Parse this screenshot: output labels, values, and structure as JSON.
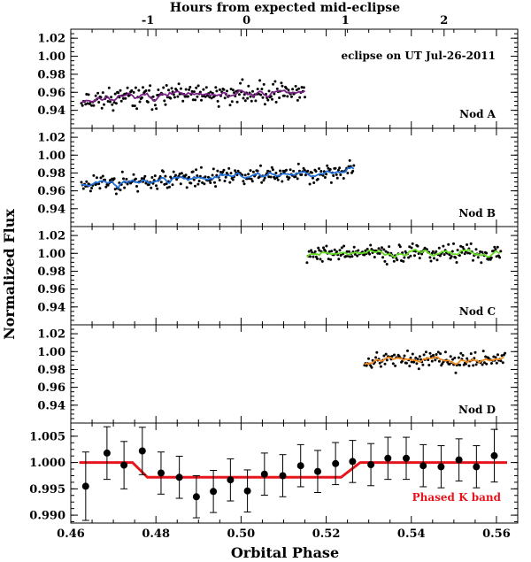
{
  "chart_data": {
    "type": "line",
    "top_axis": {
      "title": "Hours from expected mid-eclipse",
      "ticks": [
        -1,
        0,
        1,
        2
      ],
      "tick_phase": [
        0.4781,
        0.5013,
        0.5245,
        0.5477
      ]
    },
    "xlabel": "Orbital Phase",
    "ylabel": "Normalized Flux",
    "xlim": [
      0.46,
      0.565
    ],
    "xticks": [
      "0.46",
      "0.48",
      "0.50",
      "0.52",
      "0.54",
      "0.56"
    ],
    "panels": [
      {
        "label": "Nod A",
        "note": "eclipse on UT Jul-26-2011",
        "ylim": [
          0.92,
          1.03
        ],
        "yticks": [
          "0.94",
          "0.96",
          "0.98",
          "1.00",
          "1.02"
        ],
        "line_color": "#7a1f86",
        "phase_range": [
          0.4625,
          0.515
        ],
        "base": 0.952,
        "scatter": 0.01,
        "seed": 11
      },
      {
        "label": "Nod B",
        "ylim": [
          0.92,
          1.03
        ],
        "yticks": [
          "0.94",
          "0.96",
          "0.98",
          "1.00",
          "1.02"
        ],
        "line_color": "#1f6fd6",
        "phase_range": [
          0.4625,
          0.5265
        ],
        "base": 0.968,
        "scatter": 0.009,
        "seed": 23
      },
      {
        "label": "Nod C",
        "ylim": [
          0.92,
          1.03
        ],
        "yticks": [
          "0.94",
          "0.96",
          "0.98",
          "1.00",
          "1.02"
        ],
        "line_color": "#66dd22",
        "phase_range": [
          0.5155,
          0.561
        ],
        "base": 1.0,
        "scatter": 0.008,
        "seed": 37
      },
      {
        "label": "Nod D",
        "ylim": [
          0.92,
          1.03
        ],
        "yticks": [
          "0.94",
          "0.96",
          "0.98",
          "1.00",
          "1.02"
        ],
        "line_color": "#f08a1c",
        "phase_range": [
          0.529,
          0.562
        ],
        "base": 0.991,
        "scatter": 0.008,
        "seed": 53
      }
    ],
    "phased": {
      "label": "Phased K band",
      "label_color": "#e8141c",
      "ylim": [
        0.9885,
        1.0075
      ],
      "yticks": [
        "0.990",
        "0.995",
        "1.000",
        "1.005"
      ],
      "model_color": "#e8141c",
      "model": {
        "out_level": 1.0,
        "in_level": 0.9972,
        "ingress": [
          0.4745,
          0.478
        ],
        "egress": [
          0.5235,
          0.528
        ]
      },
      "points": [
        {
          "x": 0.4635,
          "y": 0.9955,
          "err": 0.0065
        },
        {
          "x": 0.4685,
          "y": 1.0018,
          "err": 0.005
        },
        {
          "x": 0.4725,
          "y": 0.9995,
          "err": 0.0045
        },
        {
          "x": 0.4768,
          "y": 1.0022,
          "err": 0.0045
        },
        {
          "x": 0.4812,
          "y": 0.998,
          "err": 0.004
        },
        {
          "x": 0.4855,
          "y": 0.9972,
          "err": 0.004
        },
        {
          "x": 0.4895,
          "y": 0.9935,
          "err": 0.004
        },
        {
          "x": 0.4935,
          "y": 0.9945,
          "err": 0.004
        },
        {
          "x": 0.4975,
          "y": 0.9967,
          "err": 0.004
        },
        {
          "x": 0.5015,
          "y": 0.9946,
          "err": 0.004
        },
        {
          "x": 0.5055,
          "y": 0.9978,
          "err": 0.004
        },
        {
          "x": 0.5098,
          "y": 0.9975,
          "err": 0.004
        },
        {
          "x": 0.514,
          "y": 0.9994,
          "err": 0.004
        },
        {
          "x": 0.518,
          "y": 0.9983,
          "err": 0.004
        },
        {
          "x": 0.5222,
          "y": 0.9998,
          "err": 0.004
        },
        {
          "x": 0.5262,
          "y": 1.0002,
          "err": 0.004
        },
        {
          "x": 0.5305,
          "y": 0.9996,
          "err": 0.004
        },
        {
          "x": 0.5345,
          "y": 1.0008,
          "err": 0.004
        },
        {
          "x": 0.5388,
          "y": 1.0008,
          "err": 0.004
        },
        {
          "x": 0.5428,
          "y": 0.9994,
          "err": 0.004
        },
        {
          "x": 0.547,
          "y": 0.9992,
          "err": 0.004
        },
        {
          "x": 0.5512,
          "y": 1.0005,
          "err": 0.004
        },
        {
          "x": 0.5553,
          "y": 0.9992,
          "err": 0.004
        },
        {
          "x": 0.5595,
          "y": 1.0013,
          "err": 0.005
        }
      ]
    }
  }
}
